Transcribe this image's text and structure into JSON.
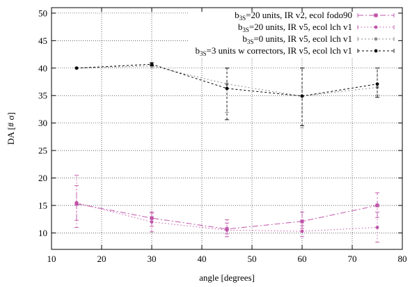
{
  "chart_data": {
    "type": "line",
    "xlabel": "angle [degrees]",
    "ylabel": "DA [# σ]",
    "xlim": [
      10,
      80
    ],
    "ylim": [
      7,
      51
    ],
    "xticks": [
      10,
      20,
      30,
      40,
      50,
      60,
      70,
      80
    ],
    "yticks": [
      10,
      15,
      20,
      25,
      30,
      35,
      40,
      45,
      50
    ],
    "grid": true,
    "legend_position": "top-right",
    "x": [
      15,
      30,
      45,
      60,
      75
    ],
    "series": [
      {
        "name": "b_3S=20 units, IR v2, ecol fodo90",
        "legend_parts": [
          "b",
          "3S",
          "=20 units, IR v2, ecol fodo90"
        ],
        "color": "#c053a8",
        "marker": "square",
        "dash": "8,3,2,3",
        "values": [
          15.3,
          12.7,
          10.7,
          12.1,
          15.0
        ],
        "err_low": [
          12.3,
          11.2,
          9.8,
          10.8,
          12.8
        ],
        "err_high": [
          18.6,
          13.6,
          11.8,
          13.8,
          17.3
        ]
      },
      {
        "name": "b_3S=20 units, IR v5, ecol lch v1",
        "legend_parts": [
          "b",
          "3S",
          "=20 units, IR v5, ecol lch v1"
        ],
        "color": "#c053a8",
        "marker": "circle",
        "dash": "1.5,3",
        "values": [
          15.5,
          12.0,
          10.5,
          10.3,
          11.0
        ],
        "err_low": [
          11.0,
          10.2,
          9.3,
          9.3,
          8.3
        ],
        "err_high": [
          20.5,
          13.8,
          12.4,
          11.3,
          13.8
        ]
      },
      {
        "name": "b_3S=0 units, IR v5, ecol lch v1",
        "legend_parts": [
          "b",
          "3S",
          "=0 units, IR v5, ecol lch v1"
        ],
        "color": "#8c8c8c",
        "marker": "circle",
        "dash": "2,3",
        "values": [
          40.0,
          40.4,
          37.1,
          34.9,
          36.5
        ],
        "err_low": [
          40.0,
          40.0,
          31.9,
          29.1,
          35.1
        ],
        "err_high": [
          40.0,
          40.5,
          40.0,
          40.0,
          40.0
        ]
      },
      {
        "name": "b_3S=3 units w correctors, IR v5, ecol lch v1",
        "legend_parts": [
          "b",
          "3S",
          "=3 units w correctors, IR v5, ecol lch v1"
        ],
        "color": "#000000",
        "marker": "circle",
        "dash": "3,3",
        "values": [
          40.0,
          40.7,
          36.3,
          34.9,
          37.1
        ],
        "err_low": [
          40.0,
          40.4,
          30.6,
          29.5,
          34.7
        ],
        "err_high": [
          40.0,
          41.0,
          40.0,
          40.0,
          40.0
        ]
      }
    ]
  }
}
